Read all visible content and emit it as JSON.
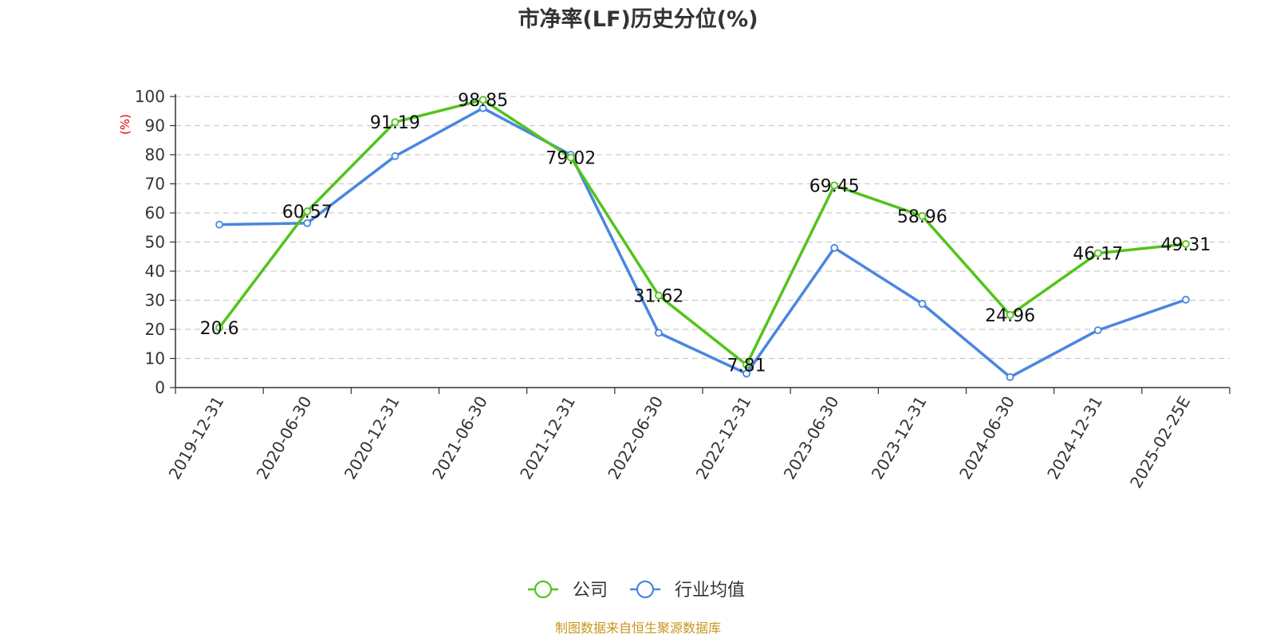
{
  "chart_data": {
    "type": "line",
    "title": "市净率(LF)历史分位(%)",
    "ylabel": "(%)",
    "xlabel": "",
    "ylim": [
      0,
      100
    ],
    "yticks": [
      0,
      10,
      20,
      30,
      40,
      50,
      60,
      70,
      80,
      90,
      100
    ],
    "grid": true,
    "legend_position": "bottom-center",
    "categories": [
      "2019-12-31",
      "2020-06-30",
      "2020-12-31",
      "2021-06-30",
      "2021-12-31",
      "2022-06-30",
      "2022-12-31",
      "2023-06-30",
      "2023-12-31",
      "2024-06-30",
      "2024-12-31",
      "2025-02-25E"
    ],
    "series": [
      {
        "name": "公司",
        "color": "#52c41a",
        "show_labels": true,
        "values": [
          20.6,
          60.57,
          91.19,
          98.85,
          79.02,
          31.62,
          7.81,
          69.45,
          58.96,
          24.96,
          46.17,
          49.31
        ]
      },
      {
        "name": "行业均值",
        "color": "#4a86e0",
        "show_labels": false,
        "values": [
          56.0,
          56.5,
          79.5,
          96.0,
          80.0,
          18.8,
          4.8,
          48.0,
          28.8,
          3.6,
          19.7,
          30.2
        ]
      }
    ],
    "source": "制图数据来自恒生聚源数据库"
  }
}
